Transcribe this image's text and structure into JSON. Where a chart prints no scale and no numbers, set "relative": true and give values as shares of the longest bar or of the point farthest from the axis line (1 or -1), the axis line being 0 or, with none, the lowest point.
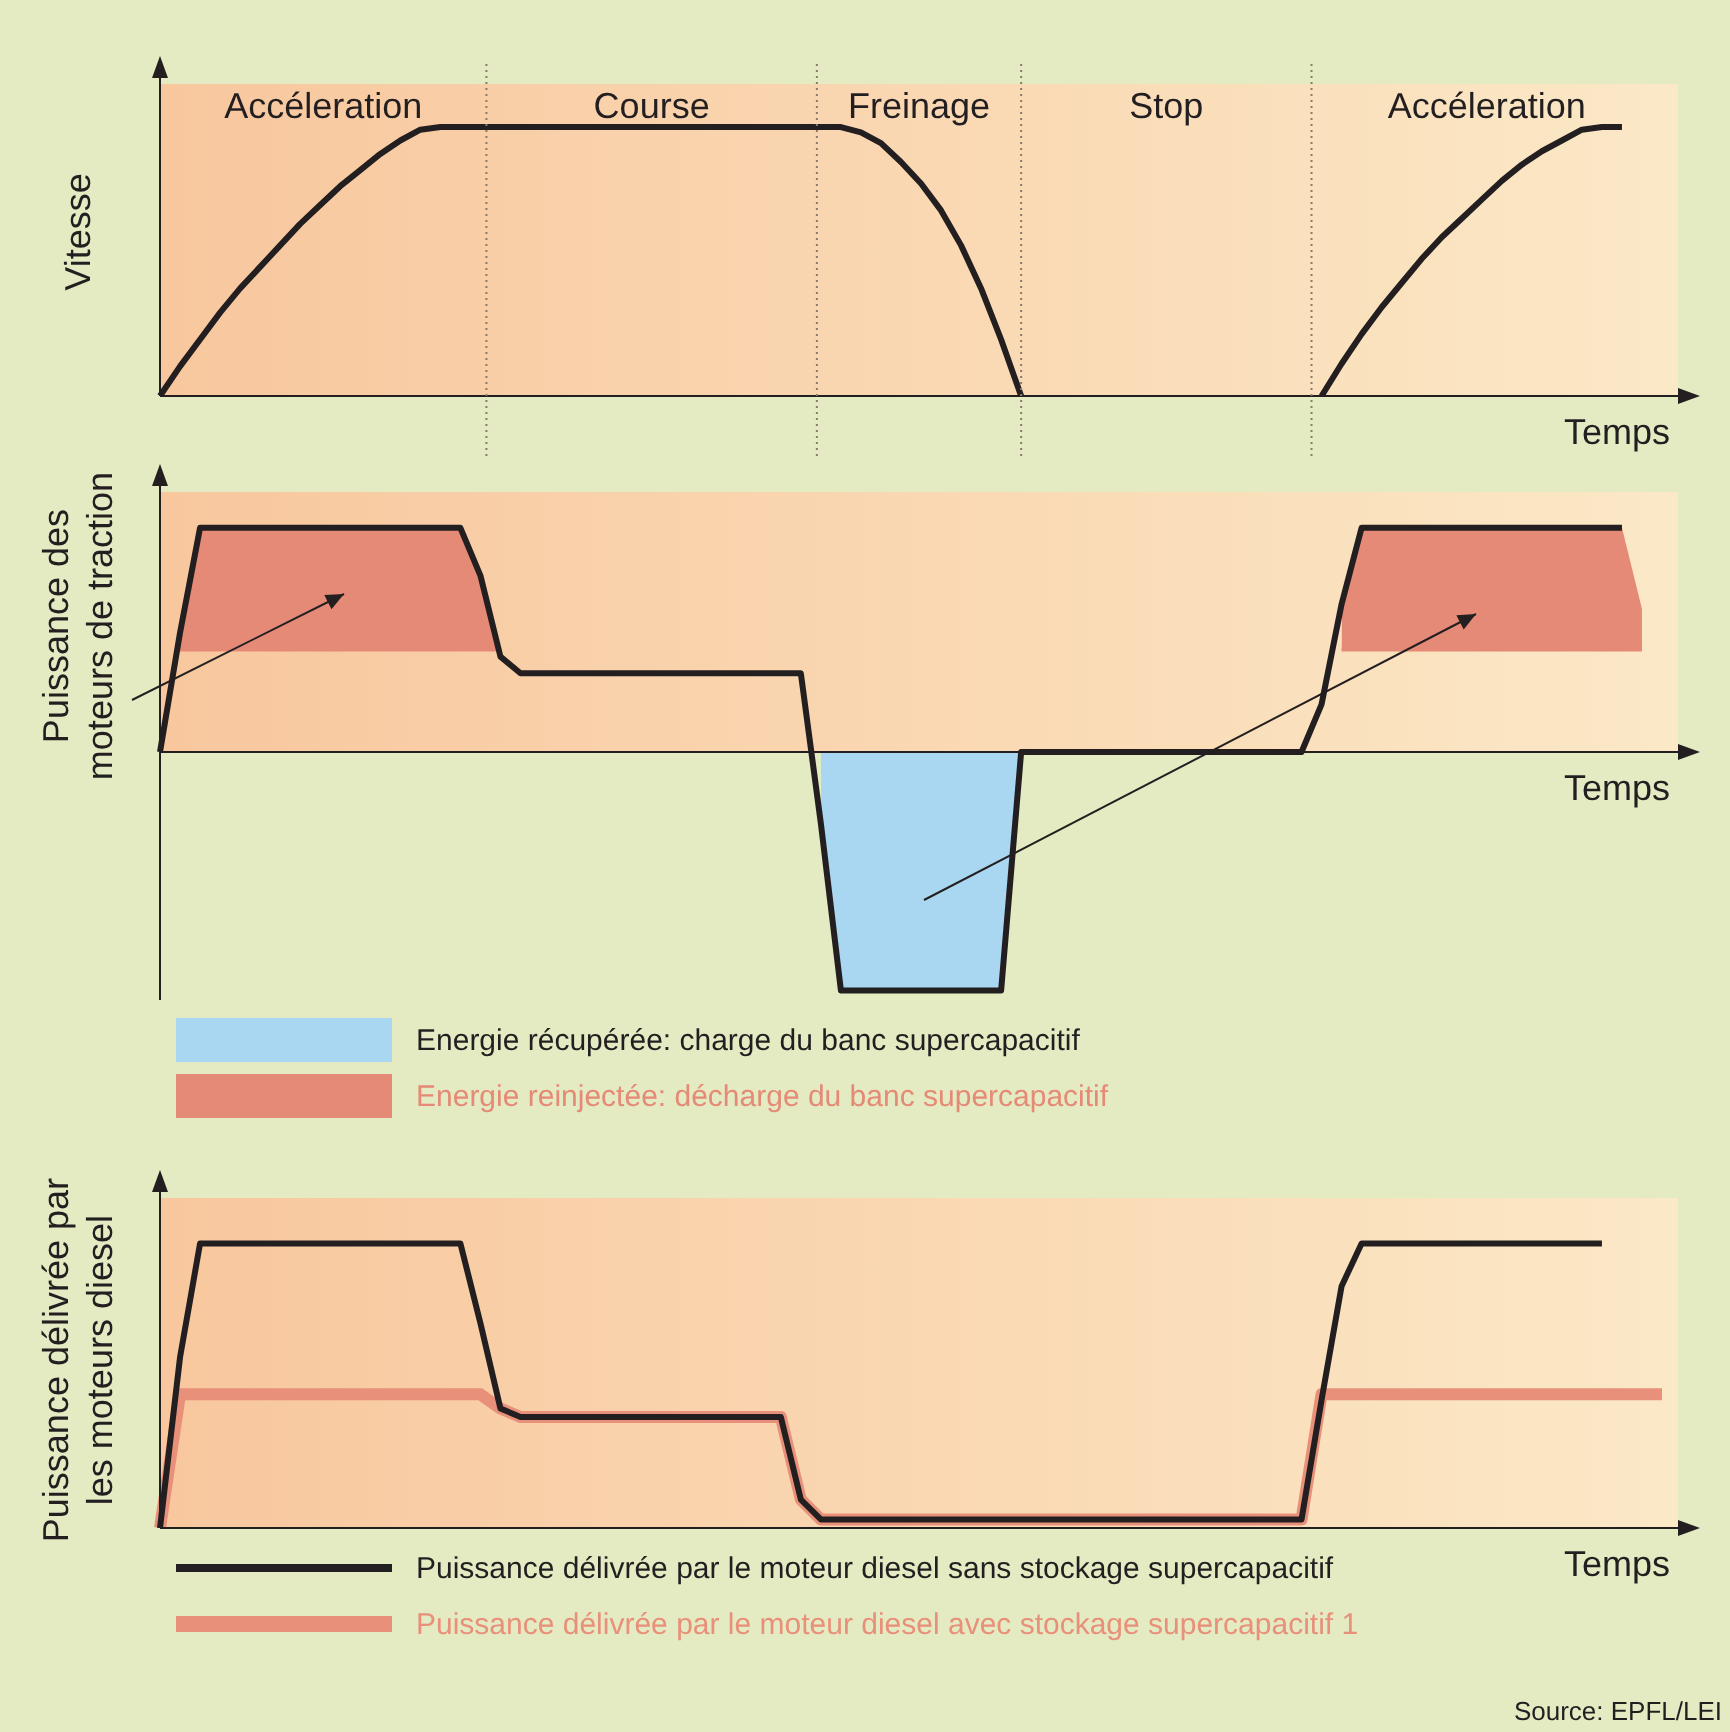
{
  "chart_data": [
    {
      "type": "line",
      "relative": true,
      "tick_labels": false,
      "xlabel": "Temps",
      "ylabel": "Vitesse",
      "annotations": [
        "Accéleration",
        "Course",
        "Freinage",
        "Stop",
        "Accéleration"
      ],
      "categories": [
        null,
        null,
        null,
        null,
        null,
        null,
        null,
        null,
        null,
        null,
        null,
        null,
        null,
        null,
        null,
        null,
        null,
        null,
        null,
        null,
        null,
        null,
        null,
        null,
        null,
        null,
        null,
        null,
        null,
        null,
        null,
        null,
        null,
        null,
        null,
        null,
        null,
        null,
        null,
        null,
        null,
        null,
        null,
        null,
        null,
        null,
        null,
        null,
        null,
        null,
        null,
        null,
        null,
        null,
        null,
        null,
        null,
        null,
        null,
        null,
        null,
        null,
        null,
        null,
        null,
        null,
        null,
        null,
        null,
        null,
        null,
        null,
        null,
        null,
        null,
        null
      ],
      "series": [
        {
          "color": "#231f20",
          "values": [
            0,
            0.11,
            0.21,
            0.31,
            0.4,
            0.48,
            0.56,
            0.64,
            0.71,
            0.78,
            0.84,
            0.9,
            0.95,
            0.99,
            1,
            1,
            1,
            1,
            1,
            1,
            1,
            1,
            1,
            1,
            1,
            1,
            1,
            1,
            1,
            1,
            1,
            1,
            1,
            1,
            1,
            0.98,
            0.94,
            0.87,
            0.79,
            0.69,
            0.56,
            0.4,
            0.21,
            0,
            null,
            null,
            null,
            null,
            null,
            null,
            null,
            null,
            null,
            null,
            null,
            null,
            null,
            null,
            null,
            null,
            null,
            null,
            null,
            null,
            null,
            null,
            null,
            null,
            null,
            null,
            null,
            null,
            null,
            null,
            null,
            null
          ]
        },
        {
          "color": "#231f20",
          "values": [
            null,
            null,
            null,
            null,
            null,
            null,
            null,
            null,
            null,
            null,
            null,
            null,
            null,
            null,
            null,
            null,
            null,
            null,
            null,
            null,
            null,
            null,
            null,
            null,
            null,
            null,
            null,
            null,
            null,
            null,
            null,
            null,
            null,
            null,
            null,
            null,
            null,
            null,
            null,
            null,
            null,
            null,
            null,
            null,
            null,
            null,
            null,
            null,
            null,
            null,
            null,
            null,
            null,
            null,
            null,
            null,
            null,
            null,
            0,
            0.12,
            0.23,
            0.33,
            0.42,
            0.51,
            0.59,
            0.66,
            0.73,
            0.8,
            0.86,
            0.91,
            0.95,
            0.99,
            1,
            1,
            null,
            null
          ]
        }
      ]
    },
    {
      "type": "line",
      "relative": true,
      "tick_labels": false,
      "xlabel": "Temps",
      "ylabel": "Puissance des moteurs de traction",
      "legend": "bottom",
      "categories": [
        null,
        null,
        null,
        null,
        null,
        null,
        null,
        null,
        null,
        null,
        null,
        null,
        null,
        null,
        null,
        null,
        null,
        null,
        null,
        null,
        null,
        null,
        null,
        null,
        null,
        null,
        null,
        null,
        null,
        null,
        null,
        null,
        null,
        null,
        null,
        null,
        null,
        null,
        null,
        null,
        null,
        null,
        null,
        null,
        null,
        null,
        null,
        null,
        null,
        null,
        null,
        null,
        null,
        null,
        null,
        null,
        null,
        null,
        null,
        null,
        null,
        null,
        null,
        null,
        null,
        null,
        null,
        null,
        null,
        null,
        null,
        null,
        null,
        null,
        null,
        null
      ],
      "series": [
        {
          "color": "#231f20",
          "values": [
            0,
            0.5,
            0.94,
            0.94,
            0.94,
            0.94,
            0.94,
            0.94,
            0.94,
            0.94,
            0.94,
            0.94,
            0.94,
            0.94,
            0.94,
            0.94,
            0.74,
            0.4,
            0.33,
            0.33,
            0.33,
            0.33,
            0.33,
            0.33,
            0.33,
            0.33,
            0.33,
            0.33,
            0.33,
            0.33,
            0.33,
            0.33,
            0.33,
            -0.3,
            -1,
            -1,
            -1,
            -1,
            -1,
            -1,
            -1,
            -1,
            -1,
            0,
            0,
            0,
            0,
            0,
            0,
            0,
            0,
            0,
            0,
            0,
            0,
            0,
            0,
            0,
            0.2,
            0.62,
            0.94,
            0.94,
            0.94,
            0.94,
            0.94,
            0.94,
            0.94,
            0.94,
            0.94,
            0.94,
            0.94,
            0.94,
            0.94,
            0.94,
            null,
            null
          ]
        },
        {
          "type": "area",
          "name": "Energie récupérée: charge du banc supercapacitif",
          "color": "#a9d6f0",
          "values": [
            null,
            null,
            null,
            null,
            null,
            null,
            null,
            null,
            null,
            null,
            null,
            null,
            null,
            null,
            null,
            null,
            null,
            null,
            null,
            null,
            null,
            null,
            null,
            null,
            null,
            null,
            null,
            null,
            null,
            null,
            null,
            null,
            null,
            -0.3,
            -1,
            -1,
            -1,
            -1,
            -1,
            -1,
            -1,
            -1,
            -1,
            0,
            null,
            null,
            null,
            null,
            null,
            null,
            null,
            null,
            null,
            null,
            null,
            null,
            null,
            null,
            null,
            null,
            null,
            null,
            null,
            null,
            null,
            null,
            null,
            null,
            null,
            null,
            null,
            null,
            null,
            null,
            null,
            null
          ]
        },
        {
          "type": "line",
          "name": "Energie reinjectée: décharge du banc supercapacitif",
          "color": "#e58a76",
          "values": [
            null,
            0.43,
            0.43,
            0.43,
            0.43,
            0.43,
            0.43,
            0.43,
            0.43,
            0.43,
            0.43,
            0.43,
            0.43,
            0.43,
            0.43,
            0.43,
            0.43,
            0.43,
            null,
            null,
            null,
            null,
            null,
            null,
            null,
            null,
            null,
            null,
            null,
            null,
            null,
            null,
            null,
            null,
            null,
            null,
            null,
            null,
            null,
            null,
            null,
            null,
            null,
            null,
            null,
            null,
            null,
            null,
            null,
            null,
            null,
            null,
            null,
            null,
            null,
            null,
            null,
            null,
            null,
            null,
            null,
            null,
            null,
            null,
            null,
            null,
            null,
            null,
            null,
            null,
            null,
            null,
            null,
            null,
            null,
            null
          ],
          "upper": [
            null,
            0.5,
            0.94,
            0.94,
            0.94,
            0.94,
            0.94,
            0.94,
            0.94,
            0.94,
            0.94,
            0.94,
            0.94,
            0.94,
            0.94,
            0.94,
            0.74,
            0.43,
            null,
            null,
            null,
            null,
            null,
            null,
            null,
            null,
            null,
            null,
            null,
            null,
            null,
            null,
            null,
            null,
            null,
            null,
            null,
            null,
            null,
            null,
            null,
            null,
            null,
            null,
            null,
            null,
            null,
            null,
            null,
            null,
            null,
            null,
            null,
            null,
            null,
            null,
            null,
            null,
            null,
            null,
            null,
            null,
            null,
            null,
            null,
            null,
            null,
            null,
            null,
            null,
            null,
            null,
            null,
            null,
            null,
            null
          ],
          "lower": [
            null,
            0.43,
            0.43,
            0.43,
            0.43,
            0.43,
            0.43,
            0.43,
            0.43,
            0.43,
            0.43,
            0.43,
            0.43,
            0.43,
            0.43,
            0.43,
            0.43,
            0.43,
            null,
            null,
            null,
            null,
            null,
            null,
            null,
            null,
            null,
            null,
            null,
            null,
            null,
            null,
            null,
            null,
            null,
            null,
            null,
            null,
            null,
            null,
            null,
            null,
            null,
            null,
            null,
            null,
            null,
            null,
            null,
            null,
            null,
            null,
            null,
            null,
            null,
            null,
            null,
            null,
            null,
            null,
            null,
            null,
            null,
            null,
            null,
            null,
            null,
            null,
            null,
            null,
            null,
            null,
            null,
            null,
            null,
            null
          ]
        },
        {
          "type": "line",
          "color": "#e58a76",
          "values": [
            null,
            null,
            null,
            null,
            null,
            null,
            null,
            null,
            null,
            null,
            null,
            null,
            null,
            null,
            null,
            null,
            null,
            null,
            null,
            null,
            null,
            null,
            null,
            null,
            null,
            null,
            null,
            null,
            null,
            null,
            null,
            null,
            null,
            null,
            null,
            null,
            null,
            null,
            null,
            null,
            null,
            null,
            null,
            null,
            null,
            null,
            null,
            null,
            null,
            null,
            null,
            null,
            null,
            null,
            null,
            null,
            null,
            null,
            null,
            0.43,
            0.43,
            0.43,
            0.43,
            0.43,
            0.43,
            0.43,
            0.43,
            0.43,
            0.43,
            0.43,
            0.43,
            0.43,
            0.43,
            0.43,
            0.43,
            null
          ],
          "upper": [
            null,
            null,
            null,
            null,
            null,
            null,
            null,
            null,
            null,
            null,
            null,
            null,
            null,
            null,
            null,
            null,
            null,
            null,
            null,
            null,
            null,
            null,
            null,
            null,
            null,
            null,
            null,
            null,
            null,
            null,
            null,
            null,
            null,
            null,
            null,
            null,
            null,
            null,
            null,
            null,
            null,
            null,
            null,
            null,
            null,
            null,
            null,
            null,
            null,
            null,
            null,
            null,
            null,
            null,
            null,
            null,
            null,
            null,
            null,
            0.62,
            0.94,
            0.94,
            0.94,
            0.94,
            0.94,
            0.94,
            0.94,
            0.94,
            0.94,
            0.94,
            0.94,
            0.94,
            0.94,
            0.94,
            0.6,
            null
          ],
          "lower": [
            null,
            null,
            null,
            null,
            null,
            null,
            null,
            null,
            null,
            null,
            null,
            null,
            null,
            null,
            null,
            null,
            null,
            null,
            null,
            null,
            null,
            null,
            null,
            null,
            null,
            null,
            null,
            null,
            null,
            null,
            null,
            null,
            null,
            null,
            null,
            null,
            null,
            null,
            null,
            null,
            null,
            null,
            null,
            null,
            null,
            null,
            null,
            null,
            null,
            null,
            null,
            null,
            null,
            null,
            null,
            null,
            null,
            null,
            null,
            0.43,
            0.43,
            0.43,
            0.43,
            0.43,
            0.43,
            0.43,
            0.43,
            0.43,
            0.43,
            0.43,
            0.43,
            0.43,
            0.43,
            0.43,
            0.43,
            null
          ]
        }
      ]
    },
    {
      "type": "line",
      "relative": true,
      "tick_labels": false,
      "xlabel": "Temps",
      "ylabel": "Puissance délivrée par les moteurs diesel",
      "legend": "bottom",
      "annotations": [
        "Source: EPFL/LEI"
      ],
      "categories": [
        null,
        null,
        null,
        null,
        null,
        null,
        null,
        null,
        null,
        null,
        null,
        null,
        null,
        null,
        null,
        null,
        null,
        null,
        null,
        null,
        null,
        null,
        null,
        null,
        null,
        null,
        null,
        null,
        null,
        null,
        null,
        null,
        null,
        null,
        null,
        null,
        null,
        null,
        null,
        null,
        null,
        null,
        null,
        null,
        null,
        null,
        null,
        null,
        null,
        null,
        null,
        null,
        null,
        null,
        null,
        null,
        null,
        null,
        null,
        null,
        null,
        null,
        null,
        null,
        null,
        null,
        null,
        null,
        null,
        null,
        null,
        null,
        null,
        null,
        null,
        null
      ],
      "series": [
        {
          "name": "Puissance délivrée par le moteur diesel sans stockage supercapacitif",
          "color": "#231f20",
          "values": [
            0,
            0.6,
            1,
            1,
            1,
            1,
            1,
            1,
            1,
            1,
            1,
            1,
            1,
            1,
            1,
            1,
            0.72,
            0.42,
            0.39,
            0.39,
            0.39,
            0.39,
            0.39,
            0.39,
            0.39,
            0.39,
            0.39,
            0.39,
            0.39,
            0.39,
            0.39,
            0.39,
            0.1,
            0.03,
            0.03,
            0.03,
            0.03,
            0.03,
            0.03,
            0.03,
            0.03,
            0.03,
            0.03,
            0.03,
            0.03,
            0.03,
            0.03,
            0.03,
            0.03,
            0.03,
            0.03,
            0.03,
            0.03,
            0.03,
            0.03,
            0.03,
            0.03,
            0.03,
            0.45,
            0.85,
            1,
            1,
            1,
            1,
            1,
            1,
            1,
            1,
            1,
            1,
            1,
            1,
            1,
            null,
            null,
            null
          ]
        },
        {
          "name": "Puissance délivrée par le moteur diesel avec stockage supercapacitif 1",
          "color": "#e8907a",
          "values": [
            0,
            0.47,
            0.47,
            0.47,
            0.47,
            0.47,
            0.47,
            0.47,
            0.47,
            0.47,
            0.47,
            0.47,
            0.47,
            0.47,
            0.47,
            0.47,
            0.47,
            0.42,
            0.39,
            0.39,
            0.39,
            0.39,
            0.39,
            0.39,
            0.39,
            0.39,
            0.39,
            0.39,
            0.39,
            0.39,
            0.39,
            0.39,
            0.1,
            0.03,
            0.03,
            0.03,
            0.03,
            0.03,
            0.03,
            0.03,
            0.03,
            0.03,
            0.03,
            0.03,
            0.03,
            0.03,
            0.03,
            0.03,
            0.03,
            0.03,
            0.03,
            0.03,
            0.03,
            0.03,
            0.03,
            0.03,
            0.03,
            0.03,
            0.47,
            0.47,
            0.47,
            0.47,
            0.47,
            0.47,
            0.47,
            0.47,
            0.47,
            0.47,
            0.47,
            0.47,
            0.47,
            0.47,
            0.47,
            0.47,
            0.47,
            0.47
          ]
        }
      ]
    }
  ]
}
